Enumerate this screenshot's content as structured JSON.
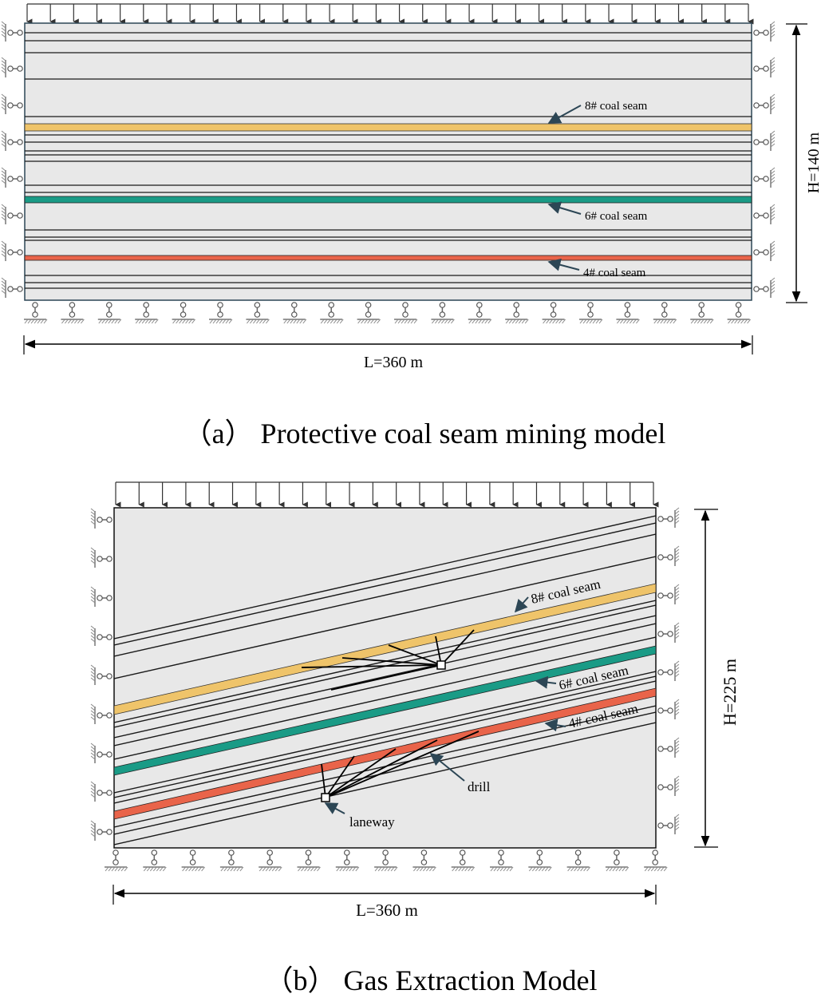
{
  "panel_a": {
    "caption": "（a） Protective coal seam mining model",
    "width_label": "L=360 m",
    "height_label": "H=140 m",
    "seam_labels": [
      "8# coal seam",
      "6# coal seam",
      "4# coal seam"
    ]
  },
  "panel_b": {
    "caption": "（b） Gas Extraction Model",
    "width_label": "L=360 m",
    "height_label": "H=225 m",
    "seam_labels": [
      "8# coal seam",
      "6# coal seam",
      "4# coal seam"
    ],
    "drill_label": "drill",
    "laneway_label": "laneway"
  },
  "colors": {
    "seam_8": "#efc46a",
    "seam_6": "#1a9b86",
    "seam_4": "#e9644a",
    "model_fill": "#e8e8e8",
    "frame": "#2c4655"
  }
}
